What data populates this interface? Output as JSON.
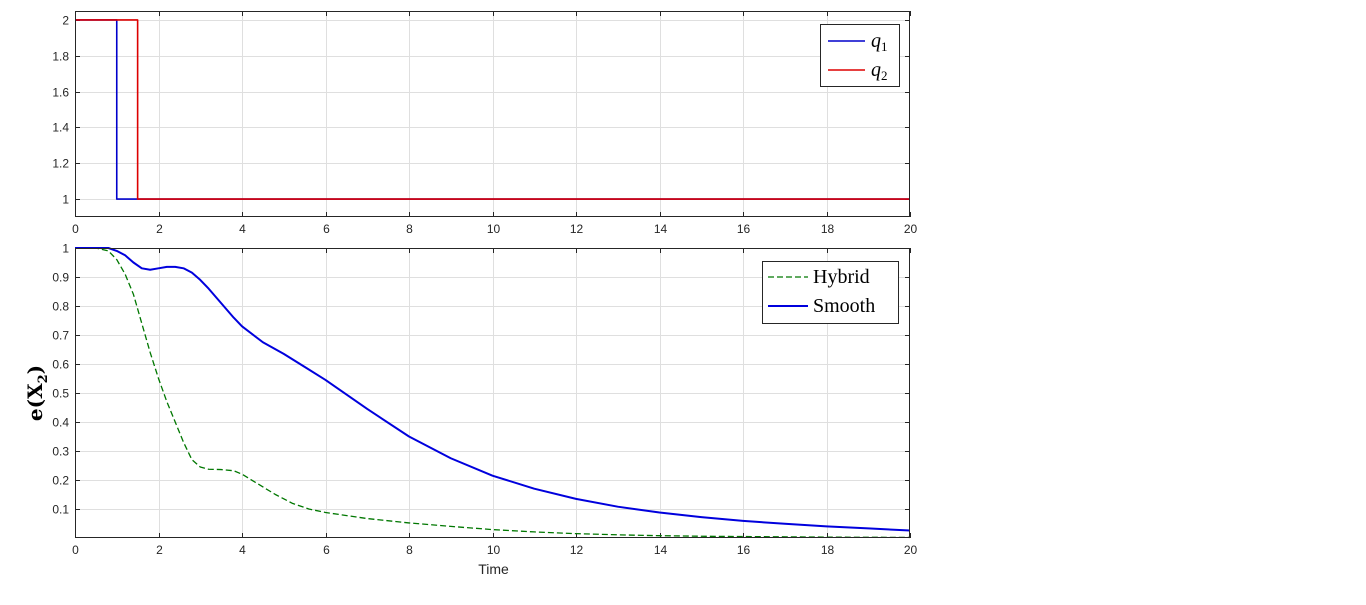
{
  "chart_data": [
    {
      "type": "line",
      "title": "",
      "xlabel": "",
      "ylabel": "",
      "xlim": [
        0,
        20
      ],
      "ylim": [
        0.9,
        2.05
      ],
      "xticks": [
        0,
        2,
        4,
        6,
        8,
        10,
        12,
        14,
        16,
        18,
        20
      ],
      "yticks": [
        1,
        1.2,
        1.4,
        1.6,
        1.8,
        2
      ],
      "grid": true,
      "legend_position": "top-right",
      "series": [
        {
          "name_parts": [
            "q",
            "1"
          ],
          "color": "#0000cc",
          "style": "solid",
          "x": [
            0,
            1.0,
            1.0,
            20
          ],
          "y": [
            2,
            2,
            1,
            1
          ]
        },
        {
          "name_parts": [
            "q",
            "2"
          ],
          "color": "#dd0000",
          "style": "solid",
          "x": [
            0,
            1.5,
            1.5,
            20
          ],
          "y": [
            2,
            2,
            1,
            1
          ]
        }
      ]
    },
    {
      "type": "line",
      "title": "",
      "xlabel": "Time",
      "ylabel_parts": [
        "e(X",
        "2",
        ")"
      ],
      "xlim": [
        0,
        20
      ],
      "ylim": [
        0,
        1
      ],
      "xticks": [
        0,
        2,
        4,
        6,
        8,
        10,
        12,
        14,
        16,
        18,
        20
      ],
      "yticks": [
        0.1,
        0.2,
        0.3,
        0.4,
        0.5,
        0.6,
        0.7,
        0.8,
        0.9,
        1
      ],
      "grid": true,
      "legend_position": "top-right",
      "series": [
        {
          "name": "Hybrid",
          "color": "#007700",
          "style": "dashed",
          "x": [
            0,
            0.5,
            0.8,
            1.0,
            1.2,
            1.4,
            1.6,
            1.8,
            2.0,
            2.2,
            2.4,
            2.6,
            2.8,
            3.0,
            3.2,
            3.5,
            3.8,
            4.0,
            4.4,
            4.8,
            5.2,
            5.6,
            6.0,
            7.0,
            8.0,
            9.0,
            10.0,
            11.0,
            12.0,
            13.0,
            14.0,
            15.0,
            16.0,
            18.0,
            20.0
          ],
          "y": [
            1,
            1,
            0.99,
            0.96,
            0.91,
            0.84,
            0.74,
            0.64,
            0.55,
            0.47,
            0.4,
            0.33,
            0.27,
            0.245,
            0.237,
            0.236,
            0.232,
            0.22,
            0.185,
            0.15,
            0.12,
            0.1,
            0.088,
            0.067,
            0.052,
            0.04,
            0.029,
            0.021,
            0.015,
            0.011,
            0.008,
            0.006,
            0.005,
            0.003,
            0.002
          ]
        },
        {
          "name": "Smooth",
          "color": "#0000dd",
          "style": "solid",
          "x": [
            0,
            0.8,
            1.0,
            1.2,
            1.4,
            1.6,
            1.8,
            2.0,
            2.2,
            2.4,
            2.6,
            2.8,
            3.0,
            3.2,
            3.5,
            3.8,
            4.0,
            4.5,
            5.0,
            5.5,
            6.0,
            7.0,
            8.0,
            9.0,
            10.0,
            11.0,
            12.0,
            13.0,
            14.0,
            15.0,
            16.0,
            17.0,
            18.0,
            19.0,
            20.0
          ],
          "y": [
            1,
            1,
            0.99,
            0.975,
            0.95,
            0.93,
            0.925,
            0.93,
            0.935,
            0.935,
            0.93,
            0.915,
            0.89,
            0.86,
            0.81,
            0.76,
            0.73,
            0.675,
            0.635,
            0.59,
            0.545,
            0.445,
            0.35,
            0.275,
            0.215,
            0.17,
            0.135,
            0.108,
            0.088,
            0.072,
            0.059,
            0.049,
            0.04,
            0.033,
            0.026
          ]
        }
      ]
    }
  ]
}
